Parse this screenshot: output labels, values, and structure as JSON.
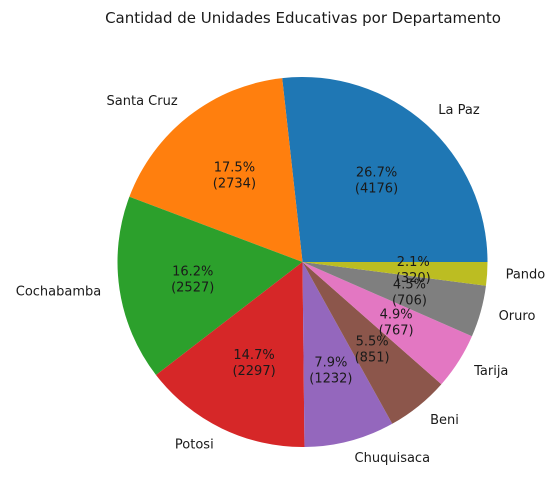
{
  "chart_data": {
    "type": "pie",
    "title": "Cantidad de Unidades Educativas por Departamento",
    "start_angle_deg": 0,
    "direction": "counterclockwise",
    "slices": [
      {
        "label": "La Paz",
        "value": 4176,
        "percent": "26.7%",
        "color": "#1f77b4"
      },
      {
        "label": "Santa Cruz",
        "value": 2734,
        "percent": "17.5%",
        "color": "#ff7f0e"
      },
      {
        "label": "Cochabamba",
        "value": 2527,
        "percent": "16.2%",
        "color": "#2ca02c"
      },
      {
        "label": "Potosi",
        "value": 2297,
        "percent": "14.7%",
        "color": "#d62728"
      },
      {
        "label": "Chuquisaca",
        "value": 1232,
        "percent": "7.9%",
        "color": "#9467bd"
      },
      {
        "label": "Beni",
        "value": 851,
        "percent": "5.5%",
        "color": "#8c564b"
      },
      {
        "label": "Tarija",
        "value": 767,
        "percent": "4.9%",
        "color": "#e377c2"
      },
      {
        "label": "Oruro",
        "value": 706,
        "percent": "4.5%",
        "color": "#7f7f7f"
      },
      {
        "label": "Pando",
        "value": 320,
        "percent": "2.1%",
        "color": "#bcbd22"
      }
    ]
  }
}
